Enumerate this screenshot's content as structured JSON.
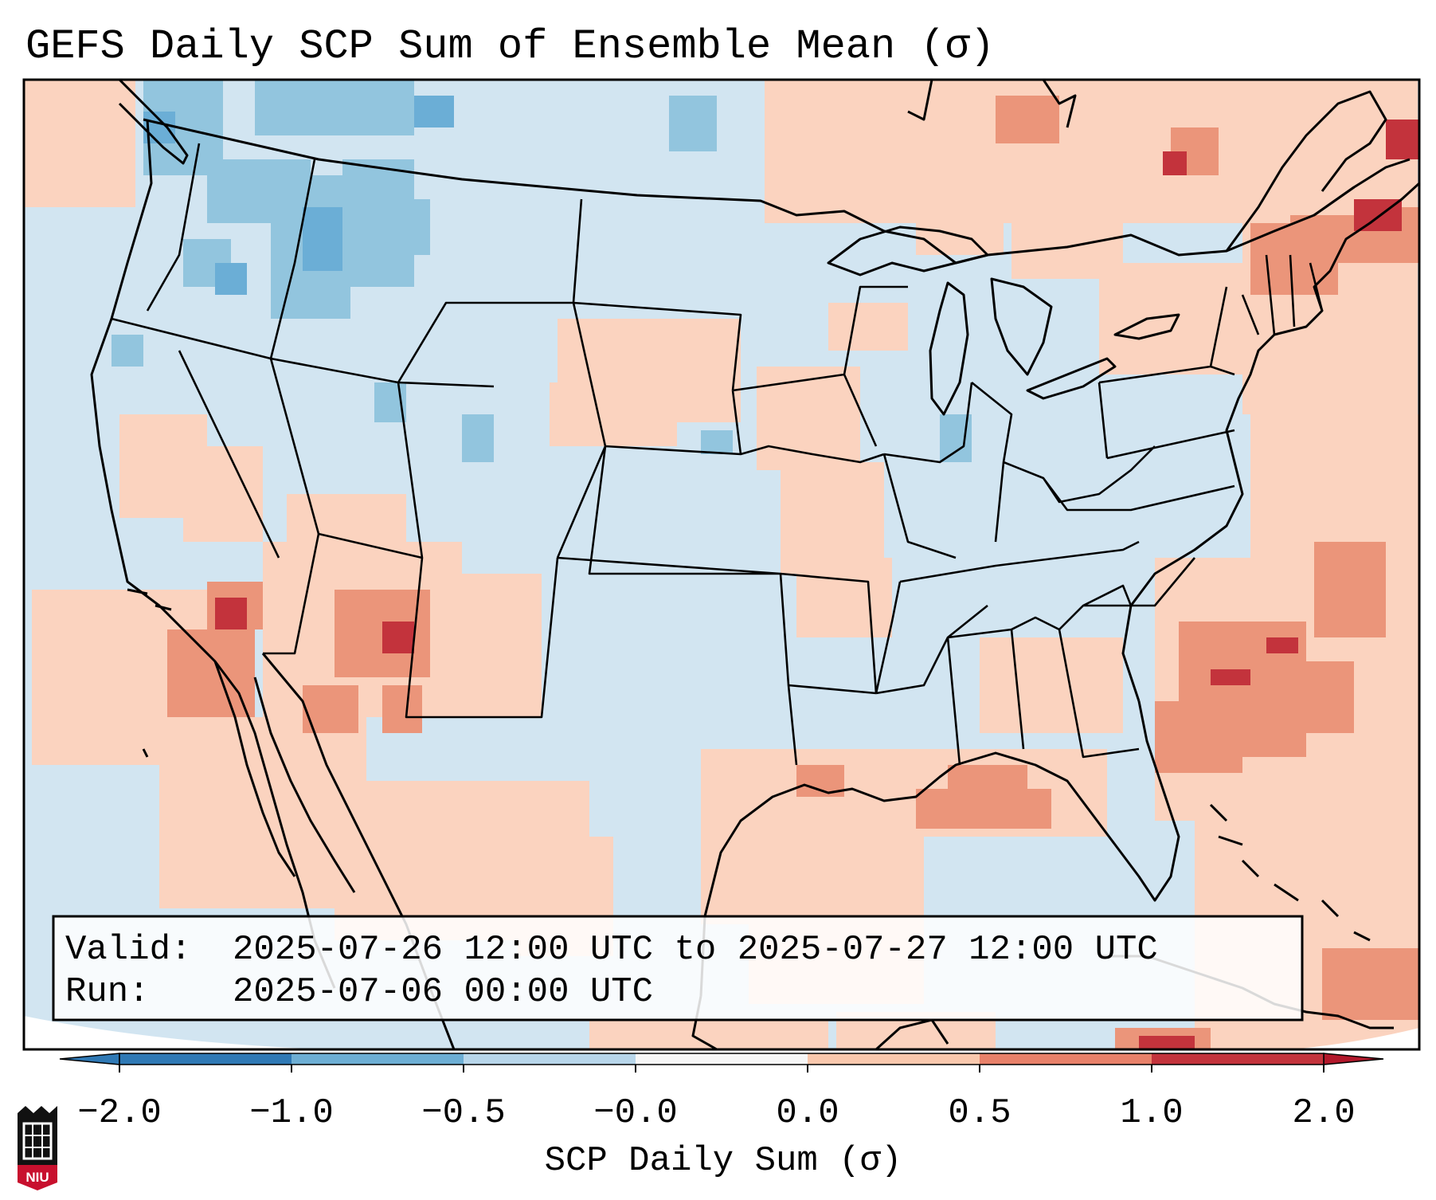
{
  "title": "GEFS Daily SCP Sum of Ensemble Mean (σ)",
  "info_box": {
    "valid_label": "Valid:",
    "valid_value": "2025-07-26 12:00 UTC to 2025-07-27 12:00 UTC",
    "run_label": "Run:",
    "run_value": "2025-07-06 00:00 UTC"
  },
  "colorbar": {
    "label": "SCP Daily Sum (σ)",
    "ticks": [
      "−2.0",
      "−1.0",
      "−0.5",
      "−0.0",
      "0.0",
      "0.5",
      "1.0",
      "2.0"
    ],
    "bin_colors": [
      "#2f79b5",
      "#6daed4",
      "#b8d6ea",
      "#f6f6f6",
      "#f9c8ad",
      "#e8816a",
      "#c3333c"
    ],
    "under_color": "#2f79b5",
    "over_color": "#b2182b"
  },
  "map_colors": {
    "ocean": "#d3e5f1",
    "land_neutral": "#d1e5f0",
    "light_blue": "#92c5de",
    "mid_blue": "#6baed6",
    "light_red": "#fbd3bf",
    "mid_red": "#eb957a",
    "dark_red": "#c3333c"
  },
  "logo": {
    "text": "NIU",
    "name": "niu-logo"
  }
}
